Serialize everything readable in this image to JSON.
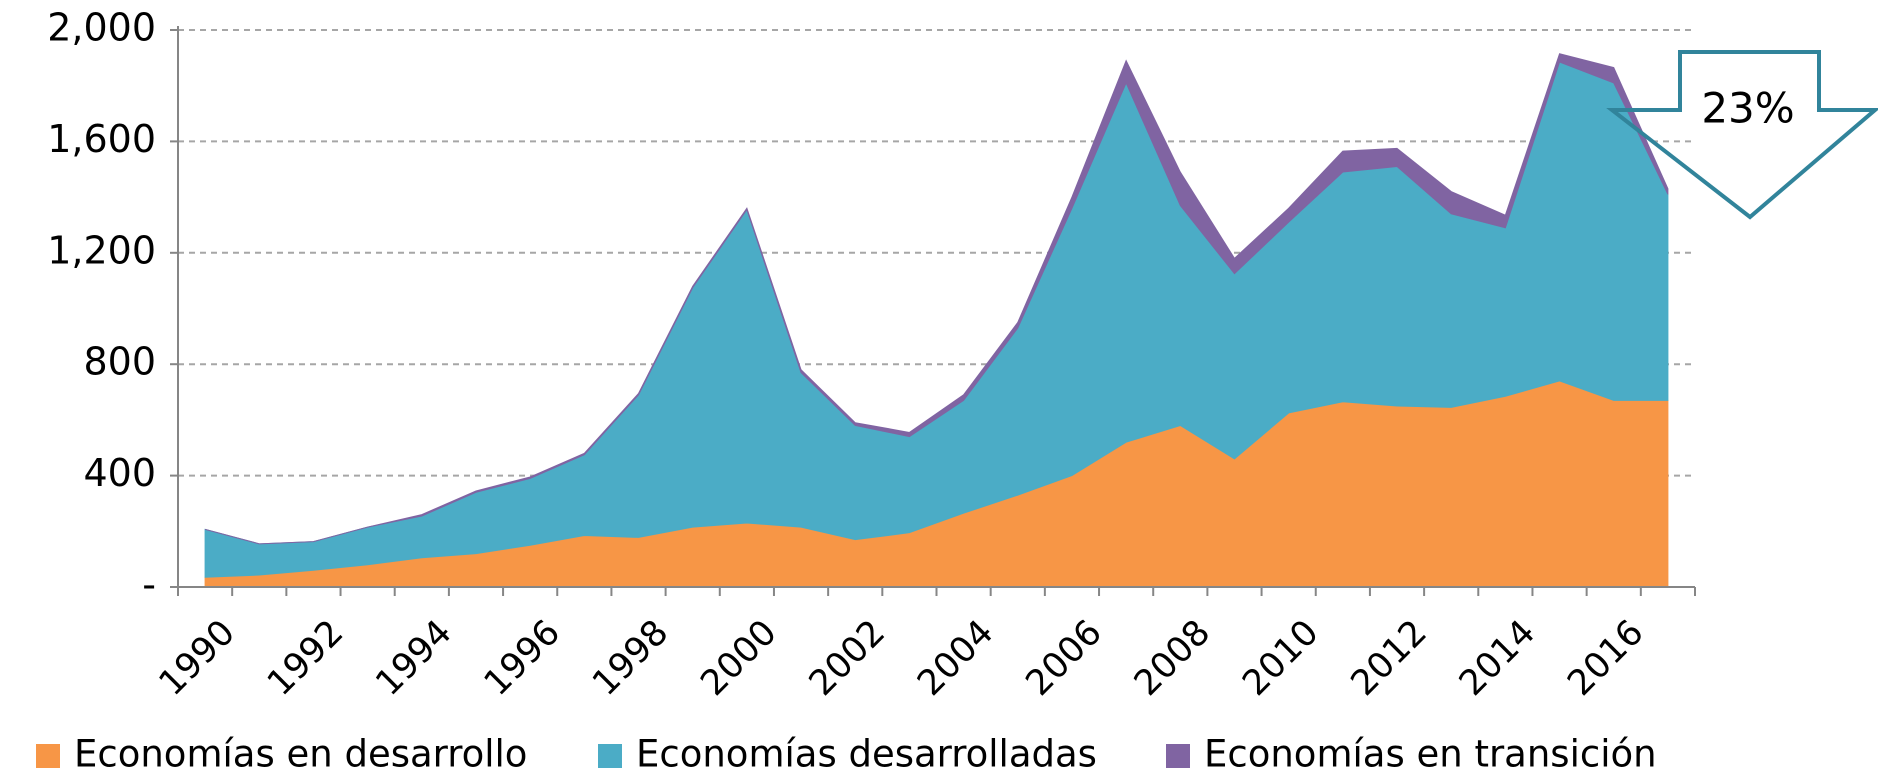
{
  "chart_data": {
    "type": "stacked_area",
    "categories": [
      "1990",
      null,
      "1992",
      null,
      "1994",
      null,
      "1996",
      null,
      "1998",
      null,
      "2000",
      null,
      "2002",
      null,
      "2004",
      null,
      "2006",
      null,
      "2008",
      null,
      "2010",
      null,
      "2012",
      null,
      "2014",
      null,
      "2016",
      null
    ],
    "series": [
      {
        "name": "Economías en desarrollo",
        "color": "#f79646",
        "values": [
          35,
          43,
          60,
          80,
          105,
          120,
          150,
          185,
          178,
          215,
          230,
          215,
          170,
          195,
          265,
          330,
          400,
          520,
          580,
          460,
          625,
          665,
          650,
          645,
          685,
          740,
          670,
          670
        ]
      },
      {
        "name": "Economías desarrolladas",
        "color": "#4bacc6",
        "values": [
          172,
          112,
          103,
          135,
          150,
          220,
          240,
          290,
          512,
          860,
          1125,
          555,
          410,
          345,
          405,
          600,
          960,
          1290,
          790,
          665,
          685,
          825,
          860,
          695,
          605,
          1145,
          1140,
          740
        ]
      },
      {
        "name": "Economías en transición",
        "color": "#8064a2",
        "values": [
          0,
          0,
          0,
          0,
          5,
          5,
          5,
          5,
          5,
          5,
          5,
          10,
          10,
          15,
          20,
          20,
          40,
          80,
          120,
          55,
          50,
          75,
          65,
          80,
          45,
          30,
          55,
          20
        ]
      }
    ],
    "ylim": [
      0,
      2000
    ],
    "yticks": [
      {
        "value": 0,
        "label": "-"
      },
      400,
      800,
      {
        "value": 1200,
        "label": "1,200"
      },
      {
        "value": 1600,
        "label": "1,600"
      },
      {
        "value": 2000,
        "label": "2,000"
      }
    ],
    "grid": true,
    "legend": "bottom",
    "annotation": "23%"
  }
}
